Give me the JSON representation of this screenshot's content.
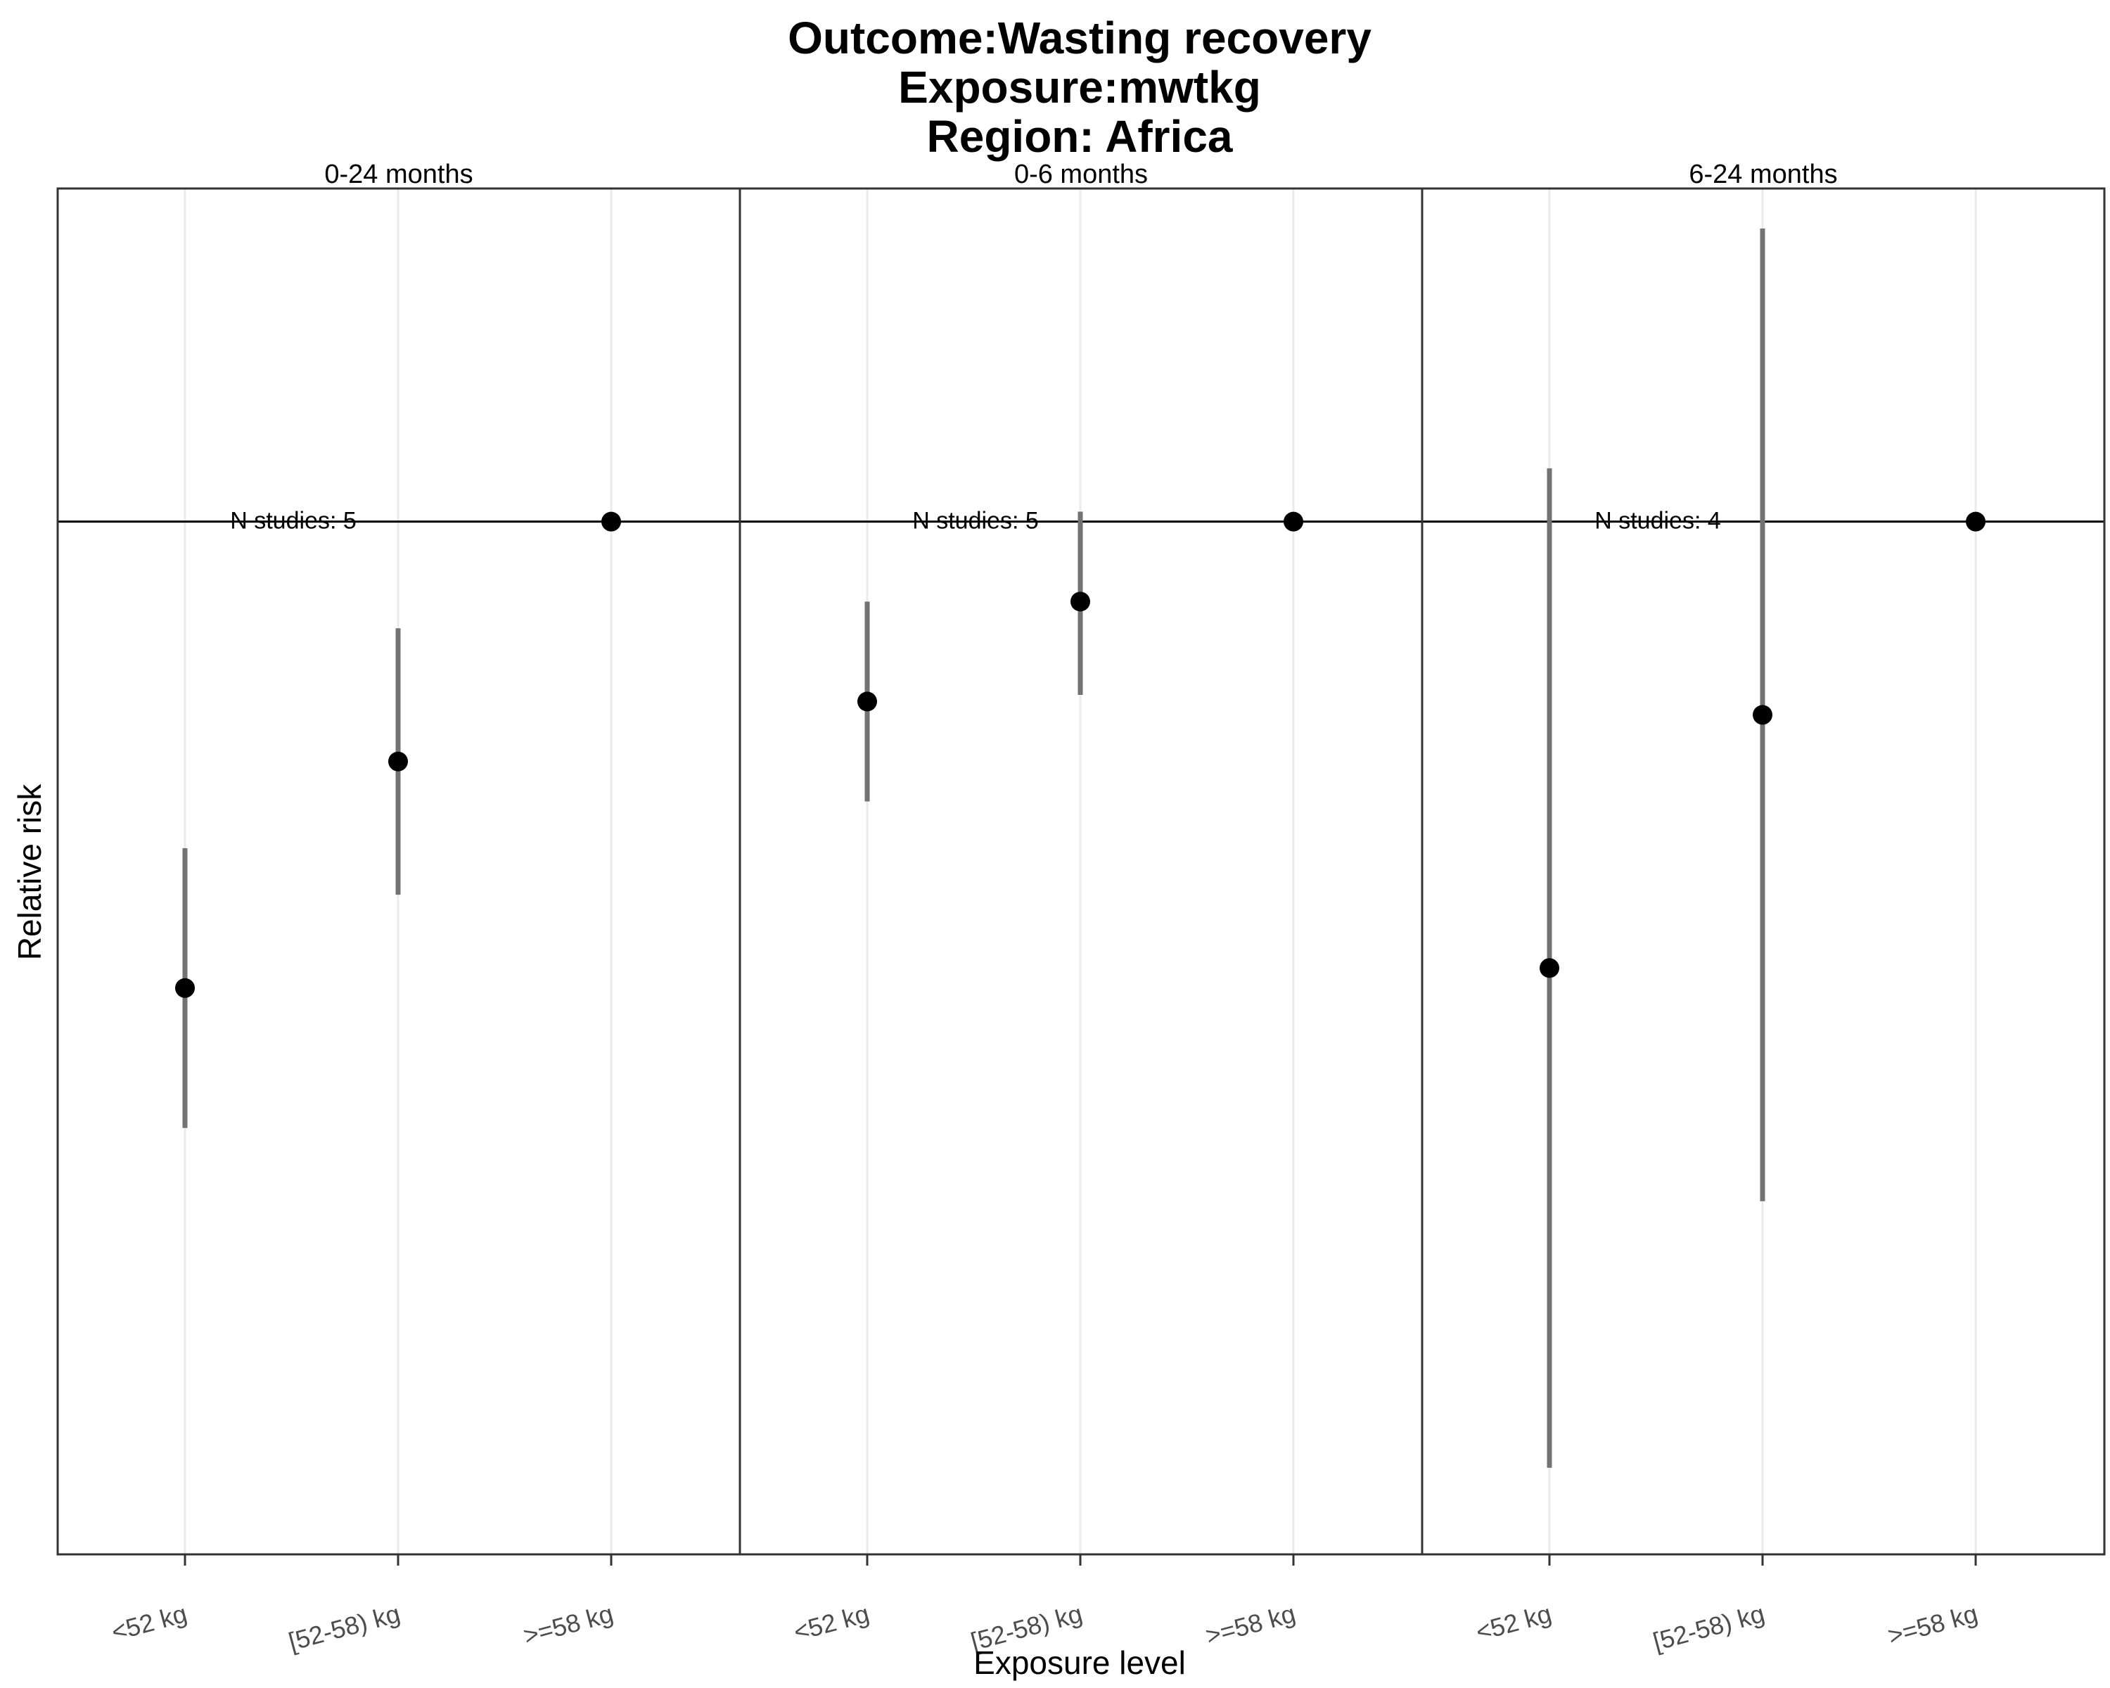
{
  "chart_data": {
    "type": "scatter",
    "title_lines": [
      "Outcome:Wasting recovery",
      "Exposure:mwtkg",
      "Region: Africa"
    ],
    "xlabel": "Exposure level",
    "ylabel": "Relative risk",
    "categories": [
      "<52 kg",
      "[52-58) kg",
      ">=58 kg"
    ],
    "reference_line": 1.0,
    "ylim": [
      0.845,
      1.05
    ],
    "grid": true,
    "legend": "none",
    "colors": {
      "point": "#000000",
      "error_bar": "#737373",
      "grid": "#ebebeb",
      "border": "#333333",
      "tick_label": "#4d4d4d"
    },
    "panels": [
      {
        "label": "0-24 months",
        "n_studies_label": "N studies: 5",
        "points": [
          {
            "x": "<52 kg",
            "y": 0.93,
            "lower": 0.909,
            "upper": 0.951
          },
          {
            "x": "[52-58) kg",
            "y": 0.964,
            "lower": 0.944,
            "upper": 0.984
          },
          {
            "x": ">=58 kg",
            "y": 1.0,
            "lower": 1.0,
            "upper": 1.0
          }
        ]
      },
      {
        "label": "0-6 months",
        "n_studies_label": "N studies: 5",
        "points": [
          {
            "x": "<52 kg",
            "y": 0.973,
            "lower": 0.958,
            "upper": 0.988
          },
          {
            "x": "[52-58) kg",
            "y": 0.988,
            "lower": 0.974,
            "upper": 1.0015
          },
          {
            "x": ">=58 kg",
            "y": 1.0,
            "lower": 1.0,
            "upper": 1.0
          }
        ]
      },
      {
        "label": "6-24 months",
        "n_studies_label": "N studies: 4",
        "points": [
          {
            "x": "<52 kg",
            "y": 0.933,
            "lower": 0.858,
            "upper": 1.008
          },
          {
            "x": "[52-58) kg",
            "y": 0.971,
            "lower": 0.898,
            "upper": 1.044
          },
          {
            "x": ">=58 kg",
            "y": 1.0,
            "lower": 1.0,
            "upper": 1.0
          }
        ]
      }
    ]
  }
}
